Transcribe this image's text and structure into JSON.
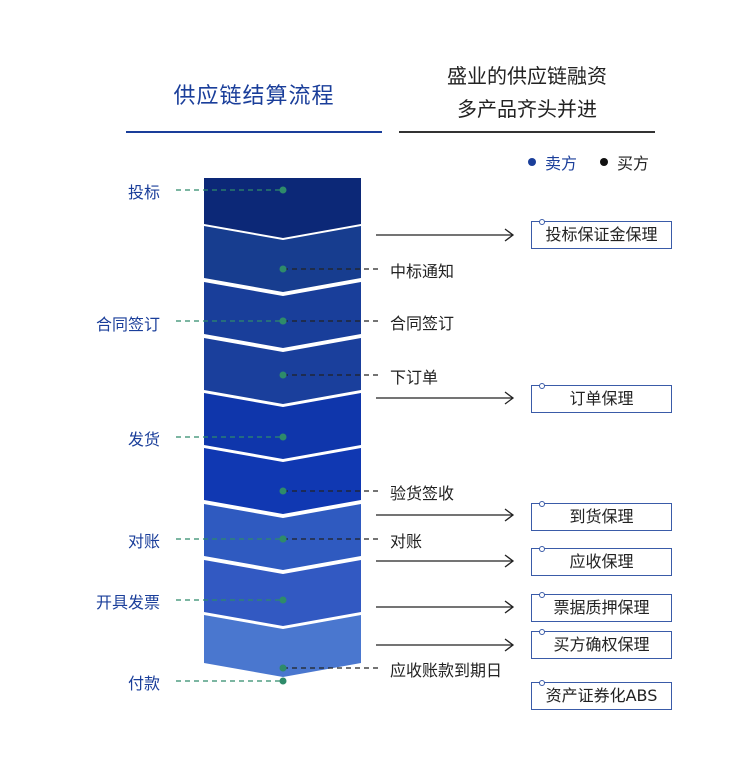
{
  "left_title": "供应链结算流程",
  "right_title_line1": "盛业的供应链融资",
  "right_title_line2": "多产品齐头并进",
  "legend": {
    "seller": {
      "label": "卖方",
      "color": "#1a3e9a"
    },
    "buyer": {
      "label": "买方",
      "color": "#111111"
    }
  },
  "seller_steps": [
    "投标",
    "合同签订",
    "发货",
    "对账",
    "开具发票",
    "付款"
  ],
  "buyer_steps": [
    "中标通知",
    "合同签订",
    "下订单",
    "验货签收",
    "对账",
    "应收账款到期日"
  ],
  "products": [
    "投标保证金保理",
    "订单保理",
    "到货保理",
    "应收保理",
    "票据质押保理",
    "买方确权保理",
    "资产证券化ABS"
  ],
  "colors": {
    "chevrons": [
      "#0c2877",
      "#173d8f",
      "#193e9a",
      "#1a3f9c",
      "#0f36ab",
      "#1038b2",
      "#2f5ac0",
      "#3259c2",
      "#4a77cf"
    ],
    "connector": "#2e8b6a"
  }
}
